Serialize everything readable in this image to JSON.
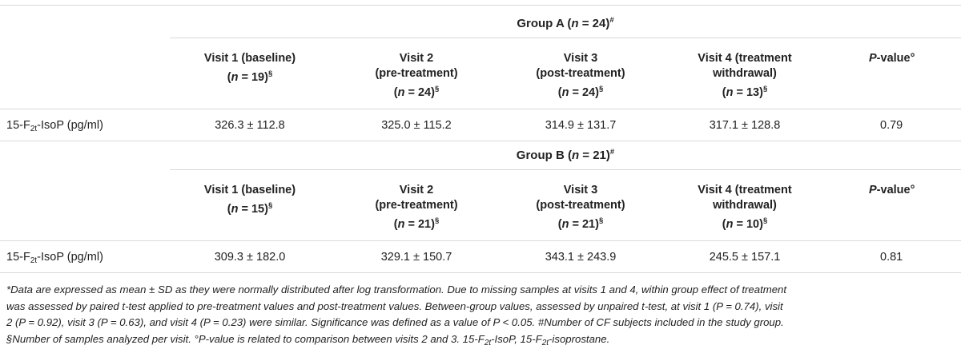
{
  "group_a": {
    "title": "Group A (",
    "n_label": "n",
    "n_value": " = 24)",
    "sup": "#",
    "columns": [
      {
        "line1": "Visit 1 (baseline)",
        "line2_pre": "(",
        "line2_n": "n",
        "line2_post": " = 19)",
        "sup": "§"
      },
      {
        "line1": "Visit 2",
        "line1b": "(pre-treatment)",
        "line2_pre": "(",
        "line2_n": "n",
        "line2_post": " = 24)",
        "sup": "§"
      },
      {
        "line1": "Visit 3",
        "line1b": "(post-treatment)",
        "line2_pre": "(",
        "line2_n": "n",
        "line2_post": " = 24)",
        "sup": "§"
      },
      {
        "line1": "Visit 4 (treatment",
        "line1b": "withdrawal)",
        "line2_pre": "(",
        "line2_n": "n",
        "line2_post": " = 13)",
        "sup": "§"
      }
    ],
    "pvalue_header_p": "P",
    "pvalue_header_rest": "-value°",
    "row_label_pre": "15-F",
    "row_label_sub": "2t",
    "row_label_post": "-IsoP (pg/ml)",
    "values": [
      "326.3 ± 112.8",
      "325.0 ± 115.2",
      "314.9 ± 131.7",
      "317.1 ± 128.8"
    ],
    "pvalue": "0.79"
  },
  "group_b": {
    "title": "Group B (",
    "n_label": "n",
    "n_value": " = 21)",
    "sup": "#",
    "columns": [
      {
        "line1": "Visit 1 (baseline)",
        "line2_pre": "(",
        "line2_n": "n",
        "line2_post": " = 15)",
        "sup": "§"
      },
      {
        "line1": "Visit 2",
        "line1b": "(pre-treatment)",
        "line2_pre": "(",
        "line2_n": "n",
        "line2_post": " = 21)",
        "sup": "§"
      },
      {
        "line1": "Visit 3",
        "line1b": "(post-treatment)",
        "line2_pre": "(",
        "line2_n": "n",
        "line2_post": " = 21)",
        "sup": "§"
      },
      {
        "line1": "Visit 4 (treatment",
        "line1b": "withdrawal)",
        "line2_pre": "(",
        "line2_n": "n",
        "line2_post": " = 10)",
        "sup": "§"
      }
    ],
    "pvalue_header_p": "P",
    "pvalue_header_rest": "-value°",
    "row_label_pre": "15-F",
    "row_label_sub": "2t",
    "row_label_post": "-IsoP (pg/ml)",
    "values": [
      "309.3 ± 182.0",
      "329.1 ± 150.7",
      "343.1 ± 243.9",
      "245.5 ± 157.1"
    ],
    "pvalue": "0.81"
  },
  "footnote": {
    "line1": "*Data are expressed as mean ± SD as they were normally distributed after log transformation. Due to missing samples at visits 1 and 4, within group effect of treatment",
    "line2": "was assessed by paired t-test applied to pre-treatment values and post-treatment values. Between-group values, assessed by unpaired t-test, at visit 1 (P = 0.74), visit",
    "line3": "2 (P = 0.92), visit 3 (P = 0.63), and visit 4 (P = 0.23) were similar. Significance was defined as a value of P < 0.05. #Number of CF subjects included in the study group.",
    "line4_a": "§Number of samples analyzed per visit. °P-value is related to comparison between visits 2 and 3. 15-F",
    "line4_sub1": "2t",
    "line4_b": "-IsoP, 15-F",
    "line4_sub2": "2t",
    "line4_c": "-isoprostane."
  }
}
